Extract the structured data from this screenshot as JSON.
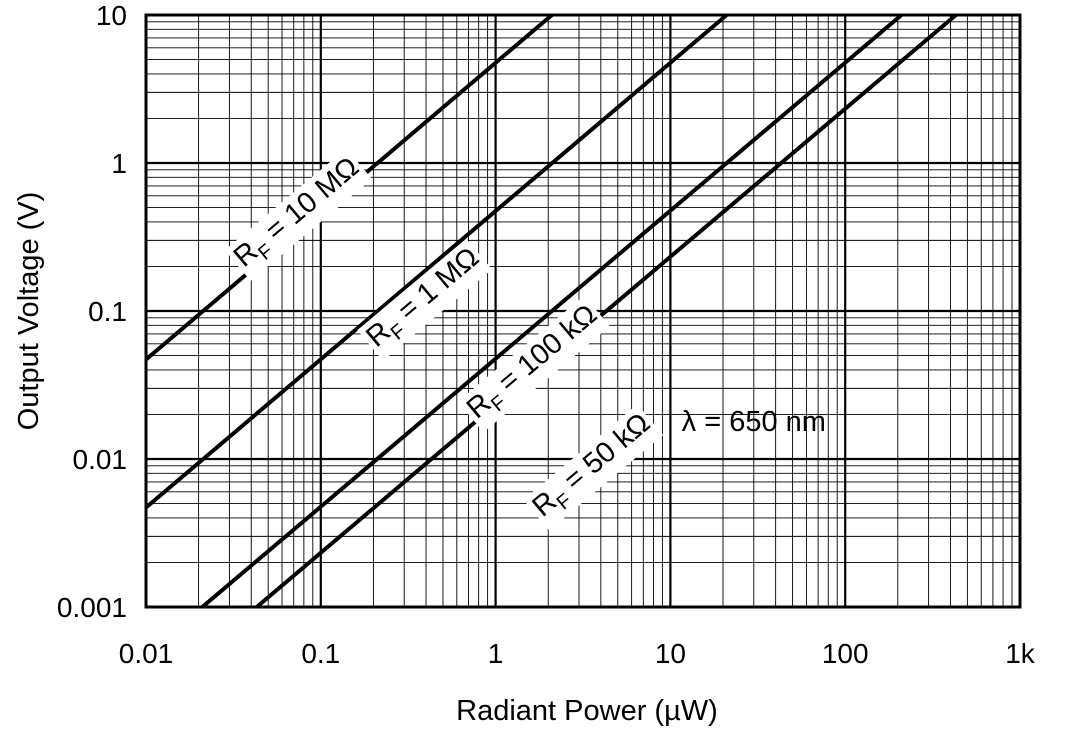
{
  "chart_data": {
    "type": "line",
    "title": "",
    "xlabel": "Radiant Power (µW)",
    "ylabel": "Output Voltage (V)",
    "xscale": "log",
    "yscale": "log",
    "xlim": [
      0.01,
      1000
    ],
    "ylim": [
      0.001,
      10
    ],
    "grid": true,
    "x_tick_labels": [
      "0.01",
      "0.1",
      "1",
      "10",
      "100",
      "1k"
    ],
    "y_tick_labels": [
      "0.001",
      "0.01",
      "0.1",
      "1",
      "10"
    ],
    "series": [
      {
        "label_main": "R",
        "label_sub": "F",
        "label_rest": " = 10 MΩ",
        "points": [
          [
            0.01,
            0.047
          ],
          [
            2.1,
            10
          ]
        ]
      },
      {
        "label_main": "R",
        "label_sub": "F",
        "label_rest": " = 1 MΩ",
        "points": [
          [
            0.01,
            0.0047
          ],
          [
            21,
            10
          ]
        ]
      },
      {
        "label_main": "R",
        "label_sub": "F",
        "label_rest": " = 100 kΩ",
        "points": [
          [
            0.021,
            0.001
          ],
          [
            210,
            10
          ]
        ]
      },
      {
        "label_main": "R",
        "label_sub": "F",
        "label_rest": " = 50 kΩ",
        "points": [
          [
            0.043,
            0.001
          ],
          [
            430,
            10
          ]
        ]
      }
    ],
    "annotations": [
      {
        "text": "λ = 650 nm",
        "x": 30,
        "y": 0.018
      }
    ]
  }
}
